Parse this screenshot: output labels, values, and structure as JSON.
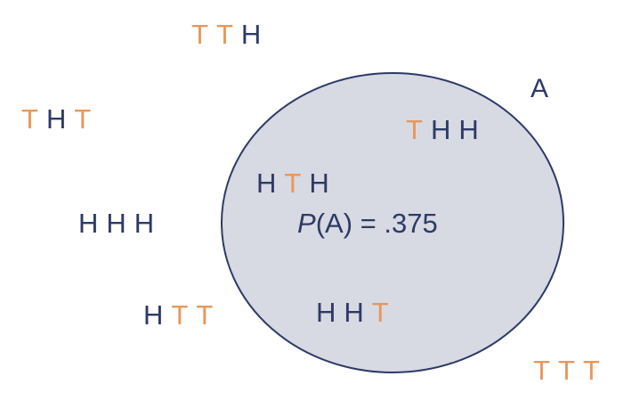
{
  "colors": {
    "heads": "#2e3a66",
    "tails": "#e8975a",
    "event_fill": "#d7d9e3",
    "event_stroke": "#2e3a66",
    "text": "#2e3a66"
  },
  "event": {
    "label": "A",
    "probability": {
      "symbol": "P",
      "argument": "(A)",
      "equals": " = ",
      "value": ".375"
    }
  },
  "outcomes": [
    {
      "id": "TTH",
      "letters": [
        "T",
        "T",
        "H"
      ],
      "in_event": false
    },
    {
      "id": "THT",
      "letters": [
        "T",
        "H",
        "T"
      ],
      "in_event": false
    },
    {
      "id": "HHH",
      "letters": [
        "H",
        "H",
        "H"
      ],
      "in_event": false
    },
    {
      "id": "HTT",
      "letters": [
        "H",
        "T",
        "T"
      ],
      "in_event": false
    },
    {
      "id": "TTT",
      "letters": [
        "T",
        "T",
        "T"
      ],
      "in_event": false
    },
    {
      "id": "THH",
      "letters": [
        "T",
        "H",
        "H"
      ],
      "in_event": true
    },
    {
      "id": "HTH",
      "letters": [
        "H",
        "T",
        "H"
      ],
      "in_event": true
    },
    {
      "id": "HHT",
      "letters": [
        "H",
        "H",
        "T"
      ],
      "in_event": true
    }
  ]
}
